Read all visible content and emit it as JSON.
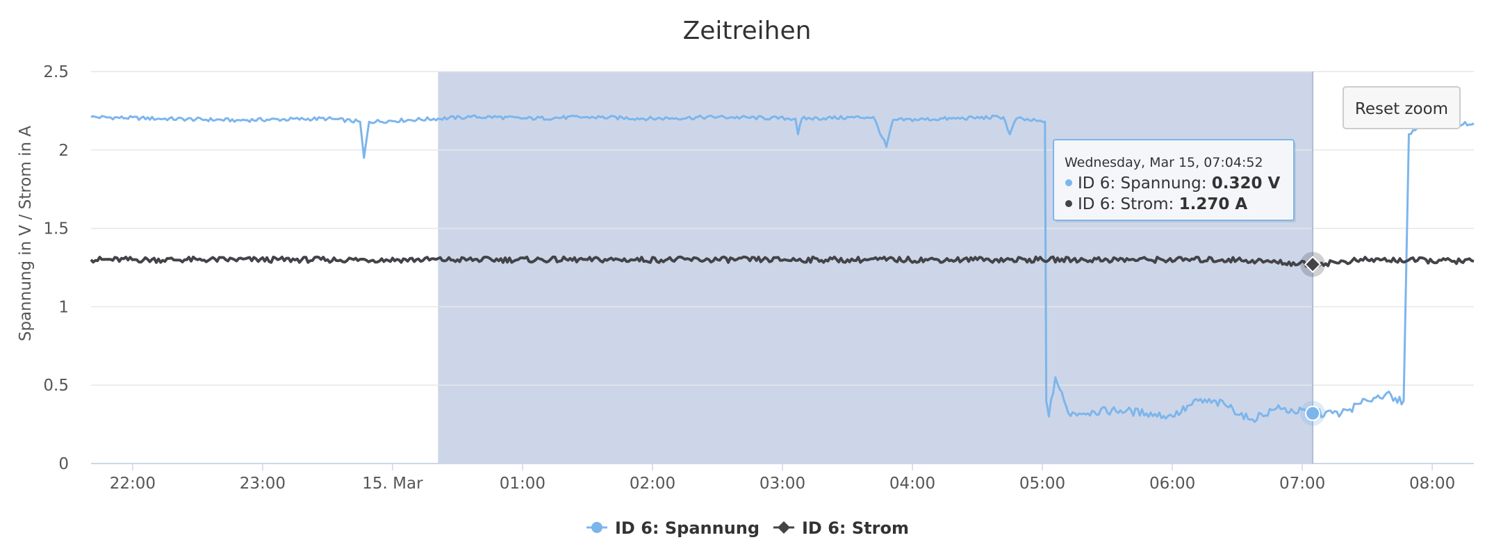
{
  "chart_data": {
    "type": "line",
    "title": "Zeitreihen",
    "ylabel": "Spannung in V / Strom in A",
    "xlabel": "",
    "ylim": [
      0,
      2.5
    ],
    "y_ticks": [
      "0",
      "0.5",
      "1",
      "1.5",
      "2",
      "2.5"
    ],
    "x_ticks": [
      "22:00",
      "23:00",
      "15. Mar",
      "01:00",
      "02:00",
      "03:00",
      "04:00",
      "05:00",
      "06:00",
      "07:00",
      "08:00"
    ],
    "x_range_hours": [
      21.68,
      32.32
    ],
    "grid": true,
    "legend_position": "bottom-center",
    "selection_range_hours": [
      24.35,
      31.08
    ],
    "series": [
      {
        "name": "ID 6: Spannung",
        "color": "#7cb5ec",
        "marker": "circle",
        "points": [
          [
            21.68,
            2.21
          ],
          [
            22.2,
            2.2
          ],
          [
            22.8,
            2.19
          ],
          [
            23.5,
            2.2
          ],
          [
            23.75,
            2.18
          ],
          [
            23.78,
            1.95
          ],
          [
            23.82,
            2.18
          ],
          [
            24.35,
            2.2
          ],
          [
            24.6,
            2.21
          ],
          [
            24.8,
            2.21
          ],
          [
            25.0,
            2.2
          ],
          [
            25.5,
            2.21
          ],
          [
            26.0,
            2.2
          ],
          [
            26.5,
            2.21
          ],
          [
            27.1,
            2.2
          ],
          [
            27.12,
            2.1
          ],
          [
            27.15,
            2.2
          ],
          [
            27.7,
            2.21
          ],
          [
            27.8,
            2.02
          ],
          [
            27.85,
            2.19
          ],
          [
            28.3,
            2.2
          ],
          [
            28.7,
            2.21
          ],
          [
            28.75,
            2.1
          ],
          [
            28.8,
            2.2
          ],
          [
            29.0,
            2.18
          ],
          [
            29.02,
            2.18
          ],
          [
            29.03,
            0.4
          ],
          [
            29.05,
            0.3
          ],
          [
            29.1,
            0.55
          ],
          [
            29.2,
            0.32
          ],
          [
            29.4,
            0.33
          ],
          [
            29.6,
            0.34
          ],
          [
            29.8,
            0.32
          ],
          [
            30.0,
            0.3
          ],
          [
            30.2,
            0.4
          ],
          [
            30.4,
            0.38
          ],
          [
            30.6,
            0.28
          ],
          [
            30.8,
            0.35
          ],
          [
            31.08,
            0.32
          ],
          [
            31.3,
            0.32
          ],
          [
            31.5,
            0.4
          ],
          [
            31.65,
            0.45
          ],
          [
            31.7,
            0.4
          ],
          [
            31.78,
            0.4
          ],
          [
            31.82,
            2.1
          ],
          [
            31.9,
            2.15
          ],
          [
            32.1,
            2.16
          ],
          [
            32.32,
            2.17
          ]
        ]
      },
      {
        "name": "ID 6: Strom",
        "color": "#434348",
        "marker": "diamond",
        "points": [
          [
            21.68,
            1.3
          ],
          [
            22.5,
            1.3
          ],
          [
            23.5,
            1.3
          ],
          [
            24.5,
            1.3
          ],
          [
            25.5,
            1.3
          ],
          [
            26.5,
            1.3
          ],
          [
            27.5,
            1.3
          ],
          [
            28.5,
            1.3
          ],
          [
            29.5,
            1.3
          ],
          [
            30.5,
            1.3
          ],
          [
            31.08,
            1.27
          ],
          [
            31.5,
            1.3
          ],
          [
            32.32,
            1.29
          ]
        ]
      }
    ],
    "tooltip": {
      "header": "Wednesday, Mar 15, 07:04:52",
      "x_hours": 31.08,
      "rows": [
        {
          "series": "ID 6: Spannung",
          "label": "ID 6: Spannung: ",
          "value": "0.320 V",
          "y": 0.32
        },
        {
          "series": "ID 6: Strom",
          "label": "ID 6: Strom: ",
          "value": "1.270 A",
          "y": 1.27
        }
      ]
    }
  },
  "reset_zoom_label": "Reset zoom"
}
